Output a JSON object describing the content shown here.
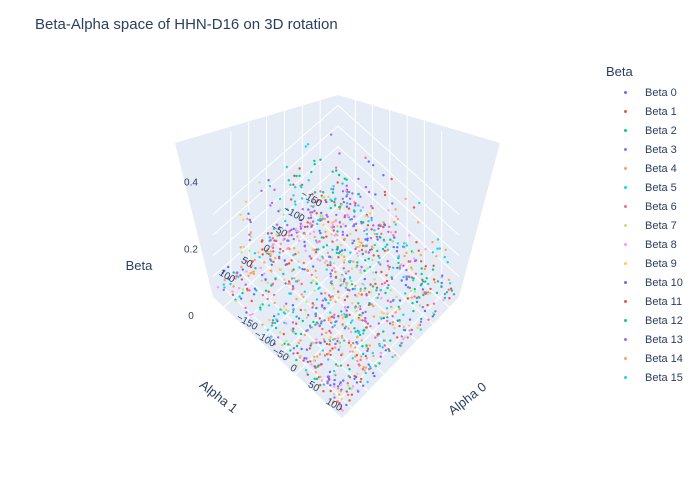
{
  "title": "Beta-Alpha space of HHN-D16 on 3D rotation",
  "legend": {
    "title": "Beta",
    "items": [
      {
        "label": "Beta 0",
        "color": "#636efa"
      },
      {
        "label": "Beta 1",
        "color": "#ef553b"
      },
      {
        "label": "Beta 2",
        "color": "#00cc96"
      },
      {
        "label": "Beta 3",
        "color": "#ab63fa"
      },
      {
        "label": "Beta 4",
        "color": "#ffa15a"
      },
      {
        "label": "Beta 5",
        "color": "#19d3f3"
      },
      {
        "label": "Beta 6",
        "color": "#ff6692"
      },
      {
        "label": "Beta 7",
        "color": "#b6e880"
      },
      {
        "label": "Beta 8",
        "color": "#ff97ff"
      },
      {
        "label": "Beta 9",
        "color": "#fecb52"
      },
      {
        "label": "Beta 10",
        "color": "#636efa"
      },
      {
        "label": "Beta 11",
        "color": "#ef553b"
      },
      {
        "label": "Beta 12",
        "color": "#00cc96"
      },
      {
        "label": "Beta 13",
        "color": "#ab63fa"
      },
      {
        "label": "Beta 14",
        "color": "#ffa15a"
      },
      {
        "label": "Beta 15",
        "color": "#19d3f3"
      }
    ]
  },
  "chart_data": {
    "type": "scatter",
    "title": "Beta-Alpha space of HHN-D16 on 3D rotation",
    "xlabel": "Alpha 0",
    "ylabel": "Alpha 1",
    "zlabel": "Beta",
    "x_range": [
      -180,
      180
    ],
    "y_range": [
      -180,
      180
    ],
    "z_range": [
      0,
      0.45
    ],
    "x_ticks": [
      "−150",
      "−100",
      "−50",
      "0",
      "50",
      "100"
    ],
    "y_ticks": [
      "−150",
      "−100",
      "−50",
      "0",
      "50",
      "100"
    ],
    "z_ticks": [
      "0",
      "0.2",
      "0.4"
    ],
    "grid": true,
    "legend_position": "right",
    "series": [
      {
        "name": "Beta 0",
        "peaks": [
          [
            -120,
            80,
            0.3
          ],
          [
            40,
            -60,
            0.22
          ]
        ]
      },
      {
        "name": "Beta 1",
        "peaks": [
          [
            -60,
            120,
            0.28
          ],
          [
            150,
            -20,
            0.3
          ]
        ]
      },
      {
        "name": "Beta 2",
        "peaks": [
          [
            30,
            30,
            0.25
          ],
          [
            -140,
            -100,
            0.18
          ]
        ]
      },
      {
        "name": "Beta 3",
        "peaks": [
          [
            -30,
            0,
            0.46
          ],
          [
            100,
            100,
            0.24
          ]
        ]
      },
      {
        "name": "Beta 4",
        "peaks": [
          [
            -150,
            150,
            0.3
          ],
          [
            60,
            -140,
            0.2
          ]
        ]
      },
      {
        "name": "Beta 5",
        "peaks": [
          [
            120,
            -100,
            0.4
          ],
          [
            -90,
            -40,
            0.42
          ]
        ]
      },
      {
        "name": "Beta 6",
        "peaks": [
          [
            0,
            140,
            0.22
          ],
          [
            -100,
            -150,
            0.2
          ]
        ]
      },
      {
        "name": "Beta 7",
        "peaks": [
          [
            -160,
            60,
            0.26
          ],
          [
            80,
            40,
            0.18
          ]
        ]
      },
      {
        "name": "Beta 8",
        "peaks": [
          [
            60,
            -100,
            0.22
          ],
          [
            -40,
            80,
            0.24
          ]
        ]
      },
      {
        "name": "Beta 9",
        "peaks": [
          [
            -120,
            150,
            0.3
          ],
          [
            140,
            60,
            0.2
          ]
        ]
      },
      {
        "name": "Beta 10",
        "peaks": [
          [
            -20,
            -120,
            0.26
          ],
          [
            90,
            -20,
            0.24
          ]
        ]
      },
      {
        "name": "Beta 11",
        "peaks": [
          [
            -80,
            40,
            0.34
          ],
          [
            20,
            -160,
            0.22
          ]
        ]
      },
      {
        "name": "Beta 12",
        "peaks": [
          [
            110,
            130,
            0.22
          ],
          [
            -140,
            -40,
            0.2
          ]
        ]
      },
      {
        "name": "Beta 13",
        "peaks": [
          [
            -100,
            100,
            0.32
          ],
          [
            0,
            -60,
            0.28
          ]
        ]
      },
      {
        "name": "Beta 14",
        "peaks": [
          [
            150,
            -150,
            0.2
          ],
          [
            -60,
            160,
            0.22
          ]
        ]
      },
      {
        "name": "Beta 15",
        "peaks": [
          [
            60,
            160,
            0.3
          ],
          [
            -160,
            0,
            0.24
          ]
        ]
      }
    ]
  }
}
